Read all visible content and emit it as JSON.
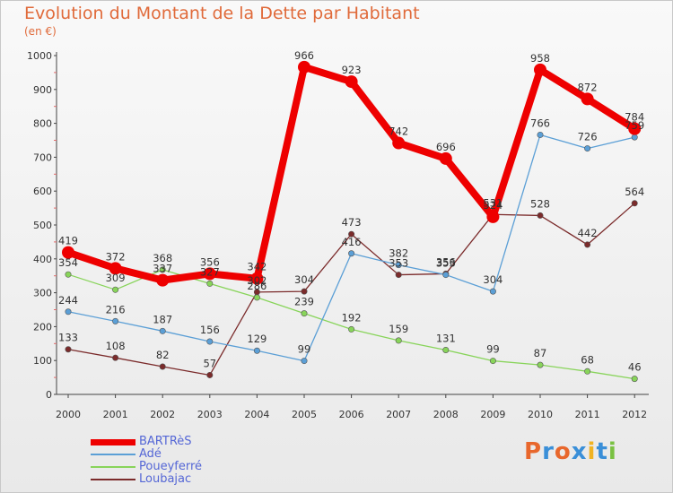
{
  "chart_data": {
    "type": "line",
    "title": "Evolution du Montant de la Dette par Habitant",
    "subtitle": "(en €)",
    "xlabel": "",
    "ylabel": "",
    "x": [
      "2000",
      "2001",
      "2002",
      "2003",
      "2004",
      "2005",
      "2006",
      "2007",
      "2008",
      "2009",
      "2010",
      "2011",
      "2012"
    ],
    "ylim": [
      0,
      1000
    ],
    "yticks": [
      0,
      100,
      200,
      300,
      400,
      500,
      600,
      700,
      800,
      900,
      1000
    ],
    "grid": false,
    "legend_position": "bottom-left",
    "series": [
      {
        "name": "BARTRèS",
        "color": "#ee0000",
        "values": [
          419,
          372,
          337,
          356,
          342,
          966,
          923,
          742,
          696,
          524,
          958,
          872,
          784
        ]
      },
      {
        "name": "Adé",
        "color": "#5b9fd6",
        "values": [
          244,
          216,
          187,
          156,
          129,
          99,
          416,
          382,
          353,
          304,
          766,
          726,
          759
        ]
      },
      {
        "name": "Poueyferré",
        "color": "#88d45a",
        "values": [
          354,
          309,
          368,
          327,
          286,
          239,
          192,
          159,
          131,
          99,
          87,
          68,
          46
        ]
      },
      {
        "name": "Loubajac",
        "color": "#7b2b2b",
        "values": [
          133,
          108,
          82,
          57,
          302,
          304,
          473,
          353,
          356,
          531,
          528,
          442,
          564
        ]
      }
    ],
    "data_labels": [
      {
        "series": 0,
        "labels": [
          "419",
          "372",
          "337",
          "356",
          "342",
          "966",
          "923",
          "742",
          "696",
          "524",
          "958",
          "872",
          "784"
        ]
      },
      {
        "series": 1,
        "labels": [
          "244",
          "216",
          "187",
          "156",
          "129",
          "99",
          "416",
          "382",
          "353",
          "304",
          "766",
          "726",
          "759"
        ]
      },
      {
        "series": 2,
        "labels": [
          "354",
          "309",
          "368",
          "327",
          "286",
          "239",
          "192",
          "159",
          "131",
          "99",
          "87",
          "68",
          "46"
        ]
      },
      {
        "series": 3,
        "labels": [
          "133",
          "108",
          "82",
          "57",
          "302",
          "304",
          "473",
          "353",
          "356",
          "531",
          "528",
          "442",
          "564"
        ]
      }
    ]
  },
  "logo": {
    "letters": [
      "P",
      "r",
      "o",
      "x",
      "i",
      "t",
      "i"
    ],
    "colors": [
      "#e8672c",
      "#3a8fd8",
      "#e8672c",
      "#3a8fd8",
      "#f0b323",
      "#3a8fd8",
      "#7ac142"
    ]
  }
}
